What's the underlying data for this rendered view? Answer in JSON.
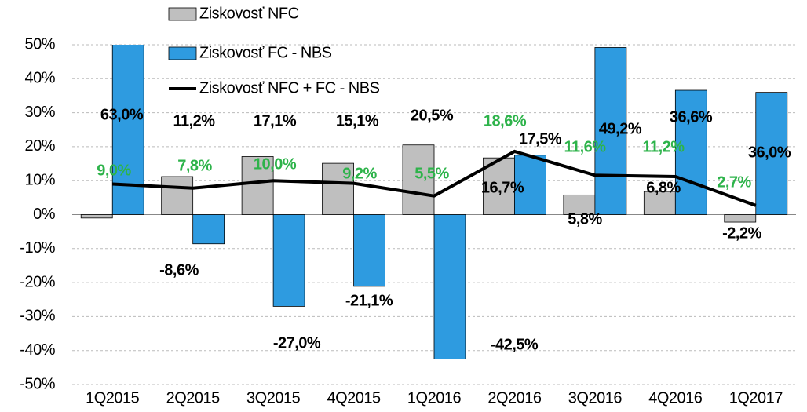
{
  "chart_data": {
    "type": "bar+line",
    "categories": [
      "1Q2015",
      "2Q2015",
      "3Q2015",
      "4Q2015",
      "1Q2016",
      "2Q2016",
      "3Q2016",
      "4Q2016",
      "1Q2017"
    ],
    "series": [
      {
        "name": "Ziskovosť NFC",
        "type": "bar",
        "color": "#bfbfbf",
        "values": [
          -1.0,
          11.2,
          17.1,
          15.1,
          20.5,
          16.7,
          5.8,
          6.8,
          -2.2
        ],
        "value_labels": [
          null,
          "11,2%",
          "17,1%",
          "15,1%",
          "20,5%",
          "16,7%",
          "5,8%",
          "6,8%",
          "-2,2%"
        ],
        "label_color": "#000000"
      },
      {
        "name": "Ziskovosť FC - NBS",
        "type": "bar",
        "color": "#2e9be0",
        "values": [
          63.0,
          -8.6,
          -27.0,
          -21.1,
          -42.5,
          17.5,
          49.2,
          36.6,
          36.0
        ],
        "value_labels": [
          "63,0%",
          "-8,6%",
          "-27,0%",
          "-21,1%",
          "-42,5%",
          "17,5%",
          "49,2%",
          "36,6%",
          "36,0%"
        ],
        "label_color": "#000000"
      },
      {
        "name": "Ziskovosť NFC + FC - NBS",
        "type": "line",
        "color": "#000000",
        "values": [
          9.0,
          7.8,
          10.0,
          9.2,
          5.5,
          18.6,
          11.6,
          11.2,
          2.7
        ],
        "value_labels": [
          "9,0%",
          "7,8%",
          "10,0%",
          "9,2%",
          "5,5%",
          "18,6%",
          "11,6%",
          "11,2%",
          "2,7%"
        ],
        "label_color": "#2db34a"
      }
    ],
    "ylim": [
      -50,
      50
    ],
    "yticks": [
      {
        "value": -50,
        "label": "-50%"
      },
      {
        "value": -40,
        "label": "-40%"
      },
      {
        "value": -30,
        "label": "-30%"
      },
      {
        "value": -20,
        "label": "-20%"
      },
      {
        "value": -10,
        "label": "-10%"
      },
      {
        "value": 0,
        "label": "0%"
      },
      {
        "value": 10,
        "label": "10%"
      },
      {
        "value": 20,
        "label": "20%"
      },
      {
        "value": 30,
        "label": "30%"
      },
      {
        "value": 40,
        "label": "40%"
      },
      {
        "value": 50,
        "label": "50%"
      }
    ],
    "grid": true
  }
}
